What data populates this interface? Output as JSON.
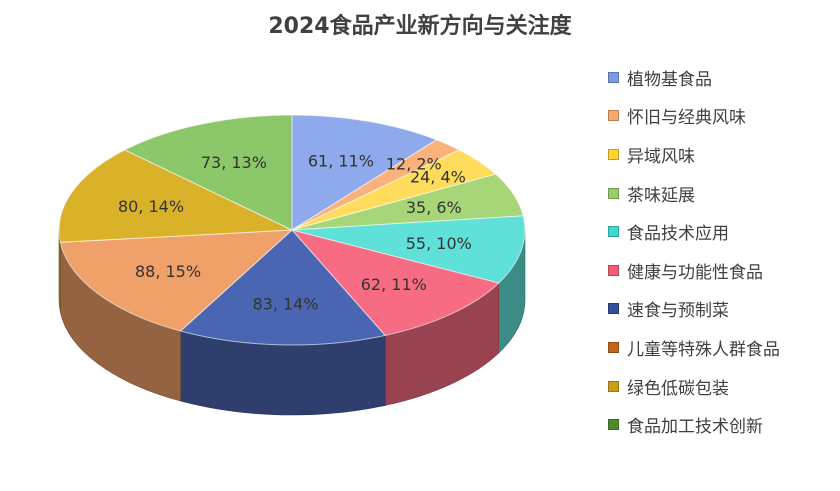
{
  "chart_data": {
    "type": "pie",
    "title": "2024食品产业新方向与关注度",
    "legend_position": "right",
    "three_d": true,
    "series": [
      {
        "name": "植物基食品",
        "value": 61,
        "percent": "11%",
        "label": "61, 11%",
        "color": "#8EA9EC"
      },
      {
        "name": "怀旧与经典风味",
        "value": 12,
        "percent": "2%",
        "label": "12, 2%",
        "color": "#F9B27C"
      },
      {
        "name": "异域风味",
        "value": 24,
        "percent": "4%",
        "label": "24, 4%",
        "color": "#FFDC5C"
      },
      {
        "name": "茶味延展",
        "value": 35,
        "percent": "6%",
        "label": "35, 6%",
        "color": "#A7D679"
      },
      {
        "name": "食品技术应用",
        "value": 55,
        "percent": "10%",
        "label": "55, 10%",
        "color": "#5FE0D8"
      },
      {
        "name": "健康与功能性食品",
        "value": 62,
        "percent": "11%",
        "label": "62, 11%",
        "color": "#F76C82"
      },
      {
        "name": "速食与预制菜",
        "value": 83,
        "percent": "14%",
        "label": "83, 14%",
        "color": "#4A66B2"
      },
      {
        "name": "儿童等特殊人群食品",
        "value": 88,
        "percent": "15%",
        "label": "88, 15%",
        "color": "#F0A069"
      },
      {
        "name": "绿色低碳包装",
        "value": 80,
        "percent": "14%",
        "label": "80, 14%",
        "color": "#D9B22A"
      },
      {
        "name": "食品加工技术创新",
        "value": 73,
        "percent": "13%",
        "label": "73, 13%",
        "color": "#8CC76A"
      }
    ]
  },
  "legend_items": [
    {
      "label": "植物基食品",
      "color": "#7C9BE6"
    },
    {
      "label": "怀旧与经典风味",
      "color": "#F7A86C"
    },
    {
      "label": "异域风味",
      "color": "#FFD235"
    },
    {
      "label": "茶味延展",
      "color": "#98CF6A"
    },
    {
      "label": "食品技术应用",
      "color": "#3FD9D0"
    },
    {
      "label": "健康与功能性食品",
      "color": "#F35B74"
    },
    {
      "label": "速食与预制菜",
      "color": "#344E9C"
    },
    {
      "label": "儿童等特殊人群食品",
      "color": "#C0651E"
    },
    {
      "label": "绿色低碳包装",
      "color": "#C89F12"
    },
    {
      "label": "食品加工技术创新",
      "color": "#4F8A2E"
    }
  ]
}
